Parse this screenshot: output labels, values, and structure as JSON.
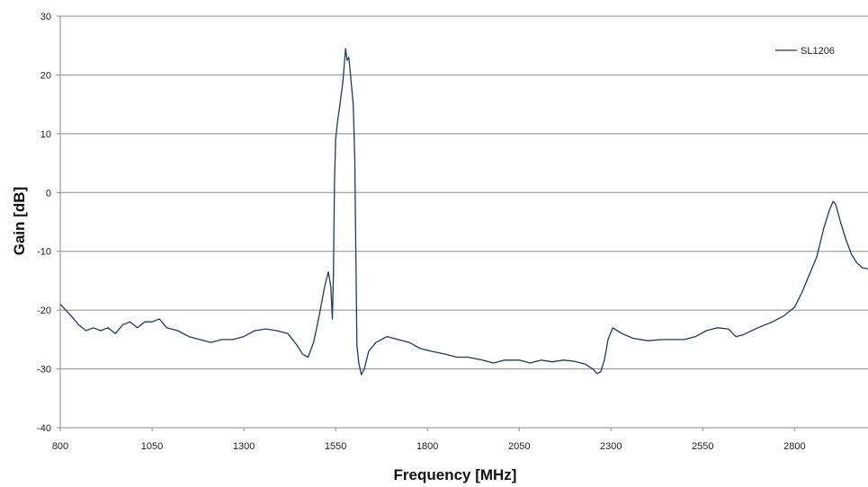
{
  "chart_data": {
    "type": "line",
    "title": "",
    "xlabel": "Frequency [MHz]",
    "ylabel": "Gain [dB]",
    "xlim": [
      800,
      3000
    ],
    "ylim": [
      -40,
      30
    ],
    "x_ticks": [
      800,
      1050,
      1300,
      1550,
      1800,
      2050,
      2300,
      2550,
      2800
    ],
    "y_ticks": [
      30,
      20,
      10,
      0,
      -10,
      -20,
      -30,
      -40
    ],
    "grid": "horizontal",
    "legend_position": "top-right",
    "series": [
      {
        "name": "SL1206",
        "color": "#1f3a5f",
        "points": [
          [
            800,
            -19
          ],
          [
            815,
            -20
          ],
          [
            830,
            -21
          ],
          [
            850,
            -22.5
          ],
          [
            870,
            -23.5
          ],
          [
            890,
            -23
          ],
          [
            910,
            -23.5
          ],
          [
            930,
            -23
          ],
          [
            950,
            -24
          ],
          [
            970,
            -22.5
          ],
          [
            990,
            -22
          ],
          [
            1010,
            -23
          ],
          [
            1030,
            -22
          ],
          [
            1050,
            -22
          ],
          [
            1070,
            -21.5
          ],
          [
            1090,
            -23
          ],
          [
            1120,
            -23.5
          ],
          [
            1150,
            -24.5
          ],
          [
            1180,
            -25
          ],
          [
            1210,
            -25.5
          ],
          [
            1240,
            -25
          ],
          [
            1270,
            -25
          ],
          [
            1300,
            -24.5
          ],
          [
            1330,
            -23.5
          ],
          [
            1360,
            -23.2
          ],
          [
            1390,
            -23.5
          ],
          [
            1420,
            -24
          ],
          [
            1445,
            -26
          ],
          [
            1460,
            -27.5
          ],
          [
            1475,
            -28
          ],
          [
            1490,
            -25.5
          ],
          [
            1505,
            -21
          ],
          [
            1520,
            -16
          ],
          [
            1530,
            -13.5
          ],
          [
            1537,
            -16
          ],
          [
            1541,
            -21.5
          ],
          [
            1544,
            -14
          ],
          [
            1547,
            2
          ],
          [
            1550,
            9
          ],
          [
            1555,
            12
          ],
          [
            1562,
            15
          ],
          [
            1570,
            19
          ],
          [
            1577,
            24.5
          ],
          [
            1581,
            22.5
          ],
          [
            1586,
            23
          ],
          [
            1592,
            19
          ],
          [
            1598,
            15
          ],
          [
            1602,
            6
          ],
          [
            1605,
            -10
          ],
          [
            1608,
            -26
          ],
          [
            1613,
            -29
          ],
          [
            1620,
            -31
          ],
          [
            1628,
            -30
          ],
          [
            1640,
            -27
          ],
          [
            1660,
            -25.5
          ],
          [
            1690,
            -24.5
          ],
          [
            1720,
            -25
          ],
          [
            1750,
            -25.5
          ],
          [
            1780,
            -26.5
          ],
          [
            1810,
            -27
          ],
          [
            1850,
            -27.5
          ],
          [
            1880,
            -28
          ],
          [
            1910,
            -28
          ],
          [
            1950,
            -28.5
          ],
          [
            1980,
            -29
          ],
          [
            2010,
            -28.5
          ],
          [
            2050,
            -28.5
          ],
          [
            2080,
            -29
          ],
          [
            2110,
            -28.5
          ],
          [
            2140,
            -28.8
          ],
          [
            2170,
            -28.5
          ],
          [
            2200,
            -28.7
          ],
          [
            2230,
            -29.2
          ],
          [
            2250,
            -30
          ],
          [
            2262,
            -30.8
          ],
          [
            2272,
            -30.5
          ],
          [
            2282,
            -28.5
          ],
          [
            2292,
            -25
          ],
          [
            2305,
            -23
          ],
          [
            2330,
            -24
          ],
          [
            2360,
            -24.8
          ],
          [
            2400,
            -25.2
          ],
          [
            2440,
            -25
          ],
          [
            2470,
            -25
          ],
          [
            2500,
            -25
          ],
          [
            2530,
            -24.5
          ],
          [
            2560,
            -23.5
          ],
          [
            2590,
            -23
          ],
          [
            2620,
            -23.2
          ],
          [
            2640,
            -24.5
          ],
          [
            2660,
            -24.2
          ],
          [
            2700,
            -23
          ],
          [
            2740,
            -22
          ],
          [
            2770,
            -21
          ],
          [
            2800,
            -19.5
          ],
          [
            2820,
            -17
          ],
          [
            2840,
            -14
          ],
          [
            2860,
            -11
          ],
          [
            2880,
            -6
          ],
          [
            2895,
            -3
          ],
          [
            2905,
            -1.5
          ],
          [
            2912,
            -2
          ],
          [
            2925,
            -5
          ],
          [
            2940,
            -8
          ],
          [
            2955,
            -10.5
          ],
          [
            2970,
            -12
          ],
          [
            2985,
            -12.8
          ],
          [
            3000,
            -13
          ]
        ]
      }
    ]
  }
}
